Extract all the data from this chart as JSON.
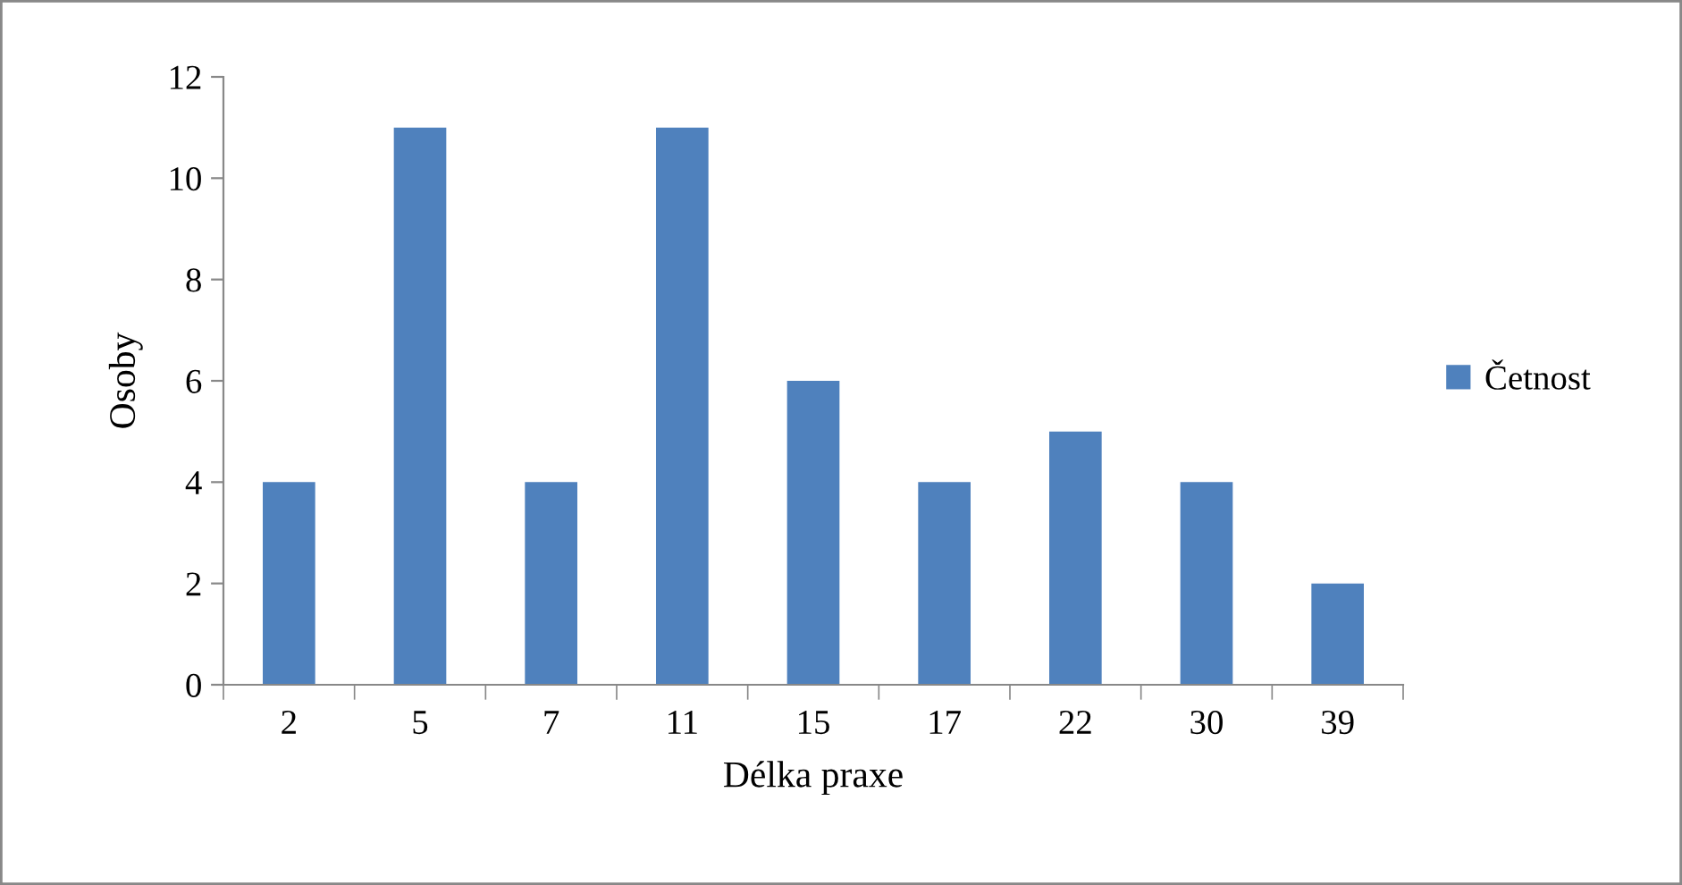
{
  "chart_data": {
    "type": "bar",
    "xlabel": "Délka praxe",
    "ylabel": "Osoby",
    "categories": [
      "2",
      "5",
      "7",
      "11",
      "15",
      "17",
      "22",
      "30",
      "39"
    ],
    "series": [
      {
        "name": "Četnost",
        "color": "#4f81bd",
        "values": [
          4,
          11,
          4,
          11,
          6,
          4,
          5,
          4,
          2
        ]
      }
    ],
    "ylim": [
      0,
      12
    ],
    "yticks": [
      0,
      2,
      4,
      6,
      8,
      10,
      12
    ],
    "grid": false,
    "legend": "right"
  }
}
